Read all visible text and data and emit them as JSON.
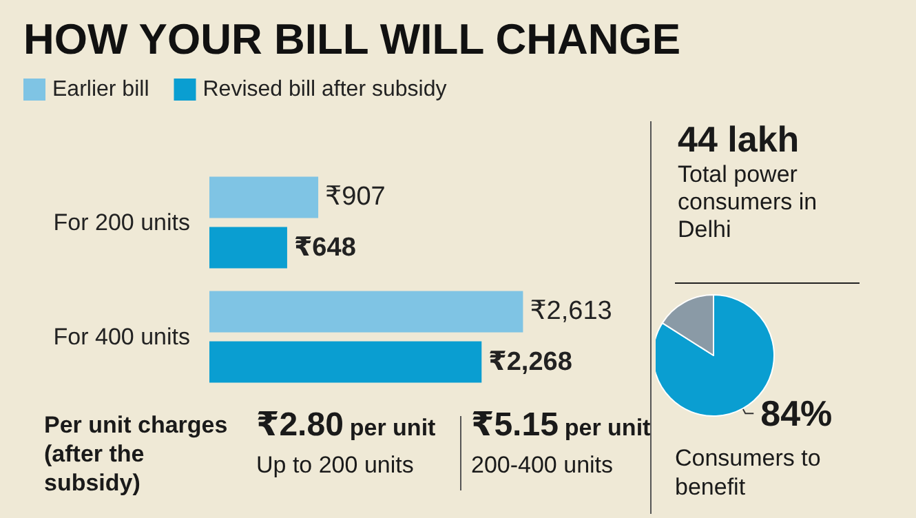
{
  "chart_data": [
    {
      "type": "bar",
      "title": "HOW YOUR BILL WILL CHANGE",
      "orientation": "horizontal",
      "categories": [
        "For 200 units",
        "For 400 units"
      ],
      "series": [
        {
          "name": "Earlier bill",
          "color": "#7fc4e4",
          "values": [
            907,
            2613
          ],
          "value_labels": [
            "₹907",
            "₹2,613"
          ]
        },
        {
          "name": "Revised bill after subsidy",
          "color": "#0a9ed1",
          "values": [
            648,
            2268
          ],
          "value_labels": [
            "₹648",
            "₹2,268"
          ]
        }
      ],
      "legend": "top left",
      "tick_labels": "y"
    },
    {
      "type": "other",
      "title": "Per unit charges (after the subsidy)",
      "annotations": [
        "₹2.80 per unit",
        "Up to 200 units",
        "₹5.15 per unit",
        "200-400 units"
      ]
    },
    {
      "type": "other",
      "title": "44 lakh",
      "annotations": [
        "Total power consumers in Delhi"
      ]
    },
    {
      "type": "pie",
      "categories": [
        null,
        null
      ],
      "values": [
        84,
        16
      ],
      "colors": [
        "#0a9ed1",
        "#8a9aa6"
      ],
      "value_labels": [
        "84%",
        null
      ],
      "annotations": [
        "Consumers to benefit"
      ]
    }
  ]
}
